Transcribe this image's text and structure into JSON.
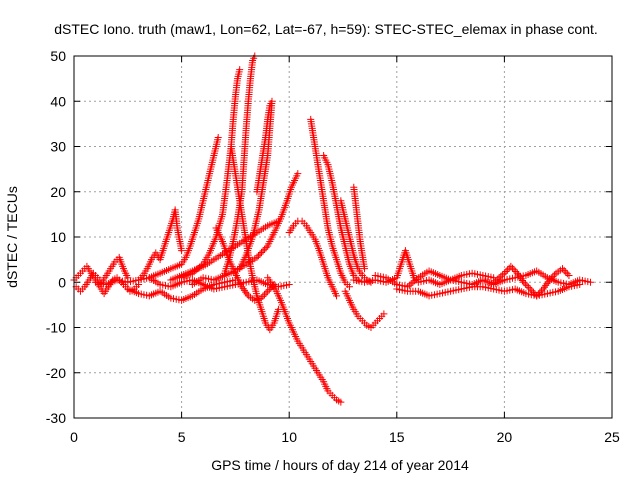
{
  "chart_data": {
    "type": "scatter",
    "title": "dSTEC Iono. truth (maw1, Lon=62, Lat=-67, h=59): STEC-STEC_elemax in phase cont.",
    "xlabel": "GPS time / hours of day 214 of year 2014",
    "ylabel": "dSTEC  / TECUs",
    "xlim": [
      0,
      25
    ],
    "ylim": [
      -30,
      50
    ],
    "xticks": [
      0,
      5,
      10,
      15,
      20,
      25
    ],
    "yticks": [
      -30,
      -20,
      -10,
      0,
      10,
      20,
      30,
      40,
      50
    ],
    "grid": true,
    "marker": "plus",
    "marker_color": "#ff0000",
    "series": [
      {
        "values": [
          [
            0.0,
            0.5
          ],
          [
            0.2,
            1.5
          ],
          [
            0.4,
            2.5
          ],
          [
            0.6,
            3.5
          ],
          [
            0.8,
            2.0
          ],
          [
            1.0,
            0.5
          ],
          [
            1.2,
            -1.0
          ],
          [
            1.4,
            -2.5
          ],
          [
            1.6,
            -1.0
          ],
          [
            1.8,
            0.5
          ],
          [
            2.0,
            1.0
          ],
          [
            2.2,
            0.0
          ],
          [
            2.4,
            -1.0
          ],
          [
            2.6,
            -2.0
          ],
          [
            2.8,
            -1.5
          ],
          [
            3.0,
            -0.5
          ]
        ]
      },
      {
        "values": [
          [
            0.1,
            -1.0
          ],
          [
            0.3,
            -2.0
          ],
          [
            0.5,
            -1.0
          ],
          [
            0.7,
            0.5
          ],
          [
            0.9,
            2.0
          ],
          [
            1.1,
            1.0
          ],
          [
            1.3,
            0.0
          ],
          [
            1.5,
            1.5
          ],
          [
            1.7,
            3.0
          ],
          [
            1.9,
            4.5
          ],
          [
            2.1,
            5.5
          ],
          [
            2.3,
            3.0
          ],
          [
            2.5,
            1.0
          ]
        ]
      },
      {
        "values": [
          [
            3.0,
            0.5
          ],
          [
            3.2,
            1.5
          ],
          [
            3.4,
            3.0
          ],
          [
            3.6,
            5.0
          ],
          [
            3.8,
            6.5
          ],
          [
            4.0,
            5.0
          ],
          [
            4.2,
            8.0
          ],
          [
            4.4,
            11.0
          ],
          [
            4.6,
            14.0
          ],
          [
            4.7,
            16.0
          ],
          [
            4.8,
            12.0
          ],
          [
            5.0,
            7.0
          ]
        ]
      },
      {
        "values": [
          [
            2.5,
            -1.5
          ],
          [
            3.0,
            -2.5
          ],
          [
            3.5,
            -3.0
          ],
          [
            4.0,
            -2.0
          ],
          [
            4.5,
            -3.5
          ],
          [
            5.0,
            -4.0
          ],
          [
            5.5,
            -3.0
          ],
          [
            6.0,
            -1.5
          ],
          [
            6.5,
            -0.5
          ],
          [
            7.0,
            0.0
          ],
          [
            7.5,
            0.5
          ]
        ]
      },
      {
        "values": [
          [
            3.5,
            1.0
          ],
          [
            4.0,
            2.0
          ],
          [
            4.5,
            3.0
          ],
          [
            5.0,
            4.0
          ],
          [
            5.2,
            5.5
          ],
          [
            5.4,
            8.0
          ],
          [
            5.6,
            11.0
          ],
          [
            5.8,
            14.0
          ],
          [
            6.0,
            18.0
          ],
          [
            6.2,
            22.0
          ],
          [
            6.4,
            26.0
          ],
          [
            6.6,
            30.0
          ],
          [
            6.7,
            32.0
          ]
        ]
      },
      {
        "values": [
          [
            5.0,
            1.0
          ],
          [
            5.5,
            2.0
          ],
          [
            6.0,
            4.0
          ],
          [
            6.3,
            6.5
          ],
          [
            6.6,
            10.0
          ],
          [
            6.9,
            15.0
          ],
          [
            7.1,
            22.0
          ],
          [
            7.3,
            30.0
          ],
          [
            7.4,
            36.0
          ],
          [
            7.5,
            41.0
          ],
          [
            7.6,
            45.0
          ],
          [
            7.7,
            47.0
          ]
        ]
      },
      {
        "values": [
          [
            7.0,
            2.0
          ],
          [
            7.2,
            5.0
          ],
          [
            7.4,
            9.0
          ],
          [
            7.6,
            14.0
          ],
          [
            7.8,
            20.0
          ],
          [
            7.9,
            27.0
          ],
          [
            8.0,
            34.0
          ],
          [
            8.1,
            40.0
          ],
          [
            8.2,
            45.0
          ],
          [
            8.3,
            49.0
          ],
          [
            8.4,
            50.0
          ]
        ]
      },
      {
        "values": [
          [
            7.3,
            30.0
          ],
          [
            7.5,
            24.0
          ],
          [
            7.7,
            18.0
          ],
          [
            7.9,
            12.0
          ],
          [
            8.1,
            6.0
          ],
          [
            8.3,
            1.0
          ],
          [
            8.5,
            -3.0
          ],
          [
            8.7,
            -6.0
          ],
          [
            8.9,
            -9.0
          ],
          [
            9.1,
            -10.5
          ],
          [
            9.3,
            -9.0
          ],
          [
            9.5,
            -6.0
          ]
        ]
      },
      {
        "values": [
          [
            6.6,
            12.0
          ],
          [
            6.9,
            9.0
          ],
          [
            7.2,
            5.0
          ],
          [
            7.5,
            2.0
          ],
          [
            7.8,
            -1.0
          ],
          [
            8.1,
            -3.0
          ],
          [
            8.4,
            -4.0
          ],
          [
            8.7,
            -3.5
          ],
          [
            9.0,
            -2.0
          ],
          [
            9.3,
            -0.5
          ]
        ]
      },
      {
        "values": [
          [
            8.5,
            20.0
          ],
          [
            8.7,
            26.0
          ],
          [
            8.9,
            32.0
          ],
          [
            9.0,
            36.0
          ],
          [
            9.1,
            39.0
          ],
          [
            9.2,
            40.0
          ],
          [
            9.0,
            28.0
          ],
          [
            8.8,
            22.0
          ],
          [
            8.6,
            16.0
          ],
          [
            8.3,
            10.0
          ],
          [
            8.0,
            6.0
          ],
          [
            7.7,
            3.0
          ]
        ]
      },
      {
        "values": [
          [
            5.5,
            -0.5
          ],
          [
            6.0,
            1.0
          ],
          [
            6.5,
            0.5
          ],
          [
            7.0,
            1.5
          ],
          [
            7.5,
            2.5
          ],
          [
            8.0,
            4.0
          ],
          [
            8.5,
            5.5
          ],
          [
            9.0,
            8.0
          ],
          [
            9.3,
            11.0
          ],
          [
            9.6,
            14.0
          ],
          [
            9.9,
            18.0
          ],
          [
            10.1,
            21.0
          ],
          [
            10.3,
            23.0
          ],
          [
            10.4,
            24.0
          ]
        ]
      },
      {
        "values": [
          [
            4.5,
            0.5
          ],
          [
            5.0,
            1.5
          ],
          [
            5.5,
            2.5
          ],
          [
            6.0,
            3.5
          ],
          [
            6.5,
            5.0
          ],
          [
            7.0,
            6.5
          ],
          [
            7.5,
            8.0
          ],
          [
            8.0,
            9.5
          ],
          [
            8.5,
            11.0
          ],
          [
            9.0,
            12.5
          ],
          [
            9.5,
            13.5
          ]
        ]
      },
      {
        "values": [
          [
            9.0,
            1.0
          ],
          [
            9.2,
            -0.5
          ],
          [
            9.4,
            -2.0
          ],
          [
            9.6,
            -4.0
          ],
          [
            9.8,
            -6.5
          ],
          [
            10.0,
            -9.0
          ],
          [
            10.2,
            -11.0
          ],
          [
            10.4,
            -13.0
          ],
          [
            10.6,
            -14.5
          ],
          [
            10.8,
            -16.0
          ],
          [
            11.0,
            -17.5
          ],
          [
            11.2,
            -19.0
          ],
          [
            11.4,
            -20.5
          ],
          [
            11.6,
            -22.0
          ],
          [
            11.8,
            -24.0
          ],
          [
            12.0,
            -25.0
          ],
          [
            12.2,
            -26.0
          ],
          [
            12.4,
            -26.5
          ]
        ]
      },
      {
        "values": [
          [
            10.0,
            11.0
          ],
          [
            10.2,
            12.5
          ],
          [
            10.4,
            13.5
          ],
          [
            10.6,
            13.5
          ],
          [
            10.8,
            12.5
          ],
          [
            11.0,
            11.0
          ],
          [
            11.2,
            9.5
          ],
          [
            11.4,
            7.0
          ],
          [
            11.6,
            4.0
          ],
          [
            11.8,
            1.0
          ],
          [
            12.0,
            -1.0
          ],
          [
            12.2,
            -3.0
          ]
        ]
      },
      {
        "values": [
          [
            11.0,
            36.0
          ],
          [
            11.2,
            30.0
          ],
          [
            11.4,
            24.0
          ],
          [
            11.6,
            18.0
          ],
          [
            11.8,
            12.0
          ],
          [
            12.0,
            8.0
          ],
          [
            12.2,
            5.0
          ],
          [
            12.4,
            2.0
          ],
          [
            12.6,
            0.0
          ],
          [
            12.8,
            -1.0
          ]
        ]
      },
      {
        "values": [
          [
            11.6,
            28.0
          ],
          [
            11.8,
            26.0
          ],
          [
            12.0,
            22.0
          ],
          [
            12.2,
            17.0
          ],
          [
            12.4,
            12.0
          ],
          [
            12.6,
            8.0
          ],
          [
            12.8,
            4.0
          ],
          [
            13.0,
            1.5
          ],
          [
            13.2,
            0.5
          ]
        ]
      },
      {
        "values": [
          [
            12.4,
            18.0
          ],
          [
            12.6,
            14.0
          ],
          [
            12.8,
            10.0
          ],
          [
            13.0,
            6.0
          ],
          [
            13.2,
            3.0
          ],
          [
            13.4,
            1.5
          ],
          [
            13.6,
            0.5
          ],
          [
            13.8,
            0.0
          ]
        ]
      },
      {
        "values": [
          [
            12.6,
            -2.0
          ],
          [
            12.8,
            -4.0
          ],
          [
            13.0,
            -6.0
          ],
          [
            13.2,
            -7.5
          ],
          [
            13.4,
            -8.5
          ],
          [
            13.6,
            -9.5
          ],
          [
            13.8,
            -10.0
          ],
          [
            14.0,
            -9.0
          ],
          [
            14.2,
            -8.0
          ],
          [
            14.4,
            -7.0
          ]
        ]
      },
      {
        "values": [
          [
            13.0,
            21.0
          ],
          [
            13.1,
            17.0
          ],
          [
            13.2,
            13.0
          ],
          [
            13.3,
            9.0
          ],
          [
            13.4,
            6.0
          ],
          [
            13.5,
            3.0
          ]
        ]
      },
      {
        "values": [
          [
            13.0,
            0.5
          ],
          [
            13.5,
            0.0
          ],
          [
            14.0,
            0.5
          ],
          [
            14.5,
            0.0
          ],
          [
            15.0,
            1.0
          ],
          [
            15.2,
            4.0
          ],
          [
            15.4,
            7.0
          ],
          [
            15.6,
            4.0
          ],
          [
            15.8,
            1.0
          ],
          [
            16.0,
            0.0
          ],
          [
            16.5,
            0.5
          ],
          [
            17.0,
            -0.5
          ],
          [
            17.5,
            0.5
          ],
          [
            18.0,
            0.0
          ],
          [
            18.5,
            -0.5
          ],
          [
            19.0,
            0.5
          ],
          [
            19.5,
            -0.5
          ],
          [
            20.0,
            0.5
          ],
          [
            20.5,
            1.0
          ],
          [
            21.0,
            1.5
          ],
          [
            21.5,
            2.5
          ],
          [
            22.0,
            1.0
          ],
          [
            22.5,
            0.0
          ],
          [
            23.0,
            -0.5
          ],
          [
            23.5,
            0.5
          ],
          [
            24.0,
            0.0
          ]
        ]
      },
      {
        "values": [
          [
            15.0,
            -1.5
          ],
          [
            15.5,
            -2.0
          ],
          [
            16.0,
            -2.0
          ],
          [
            16.5,
            -3.0
          ],
          [
            17.0,
            -2.5
          ],
          [
            17.5,
            -2.0
          ],
          [
            18.0,
            -1.5
          ],
          [
            18.5,
            -1.0
          ],
          [
            19.0,
            -1.0
          ],
          [
            19.5,
            -1.5
          ],
          [
            20.0,
            -2.0
          ],
          [
            20.5,
            -1.5
          ],
          [
            21.0,
            -2.5
          ],
          [
            21.5,
            -3.0
          ],
          [
            22.0,
            -2.5
          ],
          [
            22.5,
            -2.0
          ],
          [
            23.0,
            -1.0
          ],
          [
            23.5,
            -0.5
          ]
        ]
      },
      {
        "values": [
          [
            19.5,
            0.0
          ],
          [
            20.0,
            2.0
          ],
          [
            20.3,
            3.5
          ],
          [
            20.6,
            2.0
          ],
          [
            20.9,
            0.0
          ],
          [
            21.2,
            -1.5
          ],
          [
            21.5,
            -3.0
          ],
          [
            21.8,
            -1.5
          ],
          [
            22.1,
            0.5
          ],
          [
            22.4,
            2.0
          ],
          [
            22.7,
            3.0
          ],
          [
            23.0,
            1.5
          ]
        ]
      },
      {
        "values": [
          [
            14.0,
            1.5
          ],
          [
            14.5,
            1.0
          ],
          [
            15.0,
            -0.5
          ],
          [
            15.5,
            -1.0
          ],
          [
            16.0,
            1.0
          ],
          [
            16.5,
            2.5
          ],
          [
            17.0,
            1.5
          ],
          [
            17.5,
            0.5
          ],
          [
            18.0,
            1.5
          ],
          [
            18.5,
            2.0
          ],
          [
            19.0,
            1.5
          ],
          [
            19.5,
            1.0
          ]
        ]
      },
      {
        "values": [
          [
            1.0,
            0.0
          ],
          [
            1.5,
            -0.5
          ],
          [
            2.0,
            0.5
          ],
          [
            2.5,
            0.0
          ],
          [
            3.0,
            0.5
          ],
          [
            3.5,
            1.0
          ],
          [
            4.0,
            -0.5
          ],
          [
            4.5,
            -1.0
          ],
          [
            5.0,
            0.0
          ],
          [
            5.5,
            0.5
          ],
          [
            6.0,
            -0.5
          ],
          [
            6.5,
            -1.5
          ],
          [
            7.0,
            -1.0
          ],
          [
            7.5,
            -0.5
          ],
          [
            8.0,
            0.0
          ],
          [
            8.5,
            0.5
          ],
          [
            9.0,
            -0.5
          ],
          [
            9.5,
            -1.0
          ],
          [
            10.0,
            -0.5
          ]
        ]
      }
    ]
  }
}
